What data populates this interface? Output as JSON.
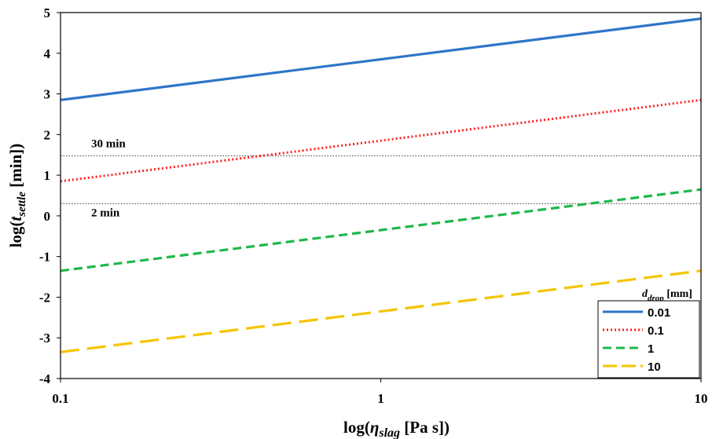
{
  "chart_data": {
    "type": "line",
    "x_scale": "log",
    "xlim": [
      0.1,
      10
    ],
    "ylim": [
      -4,
      5
    ],
    "x_ticks": [
      "0.1",
      "1",
      "10"
    ],
    "y_ticks": [
      "-4",
      "-3",
      "-2",
      "-1",
      "0",
      "1",
      "2",
      "3",
      "4",
      "5"
    ],
    "xlabel": {
      "prefix": "log(",
      "symbol": "η",
      "sub": "slag",
      "suffix": " [Pa s])"
    },
    "ylabel": {
      "prefix": "log(",
      "symbol": "t",
      "sub": "settle",
      "suffix": " [min])"
    },
    "reference_lines": [
      {
        "label": "30 min",
        "y": 1.477
      },
      {
        "label": "2 min",
        "y": 0.301
      }
    ],
    "legend": {
      "title": {
        "symbol": "d",
        "sub": "drop",
        "suffix": " [mm]"
      },
      "position": "bottom-right"
    },
    "series": [
      {
        "name": "0.01",
        "color": "#2e75c8",
        "style": "solid",
        "x": [
          0.1,
          1,
          10
        ],
        "y": [
          2.85,
          3.85,
          4.85
        ]
      },
      {
        "name": "0.1",
        "color": "#ff2020",
        "style": "dotted",
        "x": [
          0.1,
          1,
          10
        ],
        "y": [
          0.85,
          1.85,
          2.85
        ]
      },
      {
        "name": "1",
        "color": "#1fb84a",
        "style": "dashed",
        "x": [
          0.1,
          1,
          10
        ],
        "y": [
          -1.35,
          -0.35,
          0.65
        ]
      },
      {
        "name": "10",
        "color": "#f5c400",
        "style": "long-dashed",
        "x": [
          0.1,
          1,
          10
        ],
        "y": [
          -3.35,
          -2.35,
          -1.35
        ]
      }
    ]
  }
}
